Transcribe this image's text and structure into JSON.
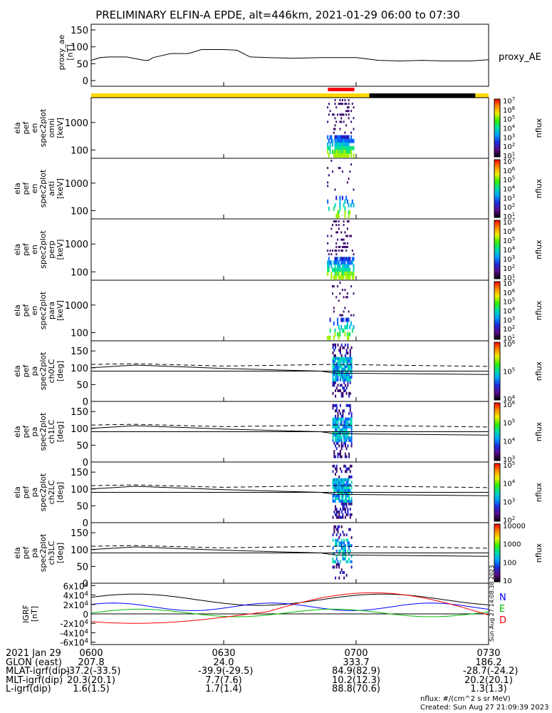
{
  "title": "PRELIMINARY ELFIN-A EPDE, alt=446km, 2021-01-29 06:00 to 07:30",
  "chart_data": {
    "type": "stacked time-series panels (line + spectrograms)",
    "time_range": [
      "06:00",
      "07:30"
    ],
    "x_ticks": [
      "0600",
      "0630",
      "0700",
      "0730"
    ],
    "panels": [
      {
        "id": "proxy_ae",
        "type": "line",
        "ylabel": [
          "proxy_ae",
          "[nT]"
        ],
        "side_label": "proxy_AE",
        "ylim": [
          0,
          150
        ],
        "yticks": [
          0,
          50,
          100,
          150
        ],
        "x_minutes": [
          0,
          2,
          4,
          8,
          12,
          13,
          14,
          18,
          20,
          22,
          25,
          30,
          33,
          36,
          40,
          46,
          52,
          56,
          60,
          62,
          65,
          70,
          75,
          80,
          86,
          90
        ],
        "values": [
          60,
          68,
          70,
          70,
          60,
          60,
          68,
          80,
          80,
          80,
          92,
          92,
          90,
          70,
          68,
          66,
          68,
          68,
          68,
          65,
          60,
          58,
          60,
          58,
          58,
          62
        ]
      },
      {
        "id": "ela_pef_en_spec2plot_omni",
        "type": "spectrogram",
        "ylabel": [
          "ela",
          "pef",
          "en",
          "spec2plot",
          "omni",
          "[keV]"
        ],
        "y_scale": "log",
        "yticks": [
          100,
          1000
        ],
        "colorbar": {
          "label": "nflux",
          "ticks": [
            "10^1",
            "10^2",
            "10^3",
            "10^4",
            "10^5",
            "10^6",
            "10^7"
          ]
        }
      },
      {
        "id": "ela_pef_en_spec2plot_anti",
        "type": "spectrogram",
        "ylabel": [
          "ela",
          "pef",
          "en",
          "spec2plot",
          "anti",
          "[keV]"
        ],
        "y_scale": "log",
        "yticks": [
          100,
          1000
        ],
        "colorbar": {
          "label": "nflux",
          "ticks": [
            "10^1",
            "10^2",
            "10^3",
            "10^4",
            "10^5",
            "10^6",
            "10^7"
          ]
        }
      },
      {
        "id": "ela_pef_en_spec2plot_perp",
        "type": "spectrogram",
        "ylabel": [
          "ela",
          "pef",
          "en",
          "spec2plot",
          "perp",
          "[keV]"
        ],
        "y_scale": "log",
        "yticks": [
          100,
          1000
        ],
        "colorbar": {
          "label": "nflux",
          "ticks": [
            "10^1",
            "10^2",
            "10^3",
            "10^4",
            "10^5",
            "10^6",
            "10^7"
          ]
        }
      },
      {
        "id": "ela_pef_en_spec2plot_para",
        "type": "spectrogram",
        "ylabel": [
          "ela",
          "pef",
          "en",
          "spec2plot",
          "para",
          "[keV]"
        ],
        "y_scale": "log",
        "yticks": [
          100,
          1000
        ],
        "colorbar": {
          "label": "nflux",
          "ticks": [
            "10^1",
            "10^2",
            "10^3",
            "10^4",
            "10^5",
            "10^6",
            "10^7"
          ]
        }
      },
      {
        "id": "ela_pef_pa_spec2plot_ch0LC",
        "type": "spectrogram",
        "ylabel": [
          "ela",
          "pef",
          "pa",
          "spec2plot",
          "ch0LC",
          "[deg]"
        ],
        "ylim": [
          0,
          180
        ],
        "yticks": [
          0,
          50,
          100,
          150
        ],
        "colorbar": {
          "label": "nflux",
          "ticks": [
            "10^4",
            "10^5",
            "10^6"
          ]
        }
      },
      {
        "id": "ela_pef_pa_spec2plot_ch1LC",
        "type": "spectrogram",
        "ylabel": [
          "ela",
          "pef",
          "pa",
          "spec2plot",
          "ch1LC",
          "[deg]"
        ],
        "ylim": [
          0,
          180
        ],
        "yticks": [
          0,
          50,
          100,
          150
        ],
        "colorbar": {
          "label": "nflux",
          "ticks": [
            "10^3",
            "10^4",
            "10^5",
            "10^6"
          ]
        }
      },
      {
        "id": "ela_pef_pa_spec2plot_ch2LC",
        "type": "spectrogram",
        "ylabel": [
          "ela",
          "pef",
          "pa",
          "spec2plot",
          "ch2LC",
          "[deg]"
        ],
        "ylim": [
          0,
          180
        ],
        "yticks": [
          0,
          50,
          100,
          150
        ],
        "colorbar": {
          "label": "nflux",
          "ticks": [
            "10^2",
            "10^3",
            "10^4",
            "10^5"
          ]
        }
      },
      {
        "id": "ela_pef_pa_spec2plot_ch3LC",
        "type": "spectrogram",
        "ylabel": [
          "ela",
          "pef",
          "pa",
          "spec2plot",
          "ch3LC",
          "[deg]"
        ],
        "ylim": [
          0,
          180
        ],
        "yticks": [
          0,
          50,
          100,
          150
        ],
        "colorbar": {
          "label": "nflux",
          "ticks": [
            "10",
            "100",
            "1000",
            "10000"
          ]
        }
      },
      {
        "id": "igrf",
        "type": "line",
        "ylabel": [
          "IGRF",
          "[nT]"
        ],
        "ylim": [
          -65000,
          65000
        ],
        "yticks": [
          "-6x10^4",
          "-4x10^4",
          "-2x10^4",
          "0",
          "2x10^4",
          "4x10^4",
          "6x10^4"
        ],
        "legend": [
          {
            "name": "N",
            "color": "#0000ff"
          },
          {
            "name": "E",
            "color": "#00c000"
          },
          {
            "name": "D",
            "color": "#ff0000"
          }
        ],
        "side_stamp": "Sun Aug 27 14:08:38 2023"
      }
    ],
    "footer_rows": [
      {
        "label": "2021 Jan 29",
        "values": [
          "0600",
          "0630",
          "0700",
          "0730"
        ]
      },
      {
        "label": "GLON (east)",
        "values": [
          "207.8",
          "24.0",
          "333.7",
          "186.2"
        ]
      },
      {
        "label": "MLAT-igrf(dip)",
        "values": [
          "-37.2(-33.5)",
          "-39.9(-29.5)",
          "84.9(82.9)",
          "-28.7(-24.2)"
        ]
      },
      {
        "label": "MLT-igrf(dip)",
        "values": [
          "20.3(20.1)",
          "7.7(7.6)",
          "10.2(12.3)",
          "20.2(20.1)"
        ]
      },
      {
        "label": "L-igrf(dip)",
        "values": [
          "1.6(1.5)",
          "1.7(1.4)",
          "88.8(70.6)",
          "1.3(1.3)"
        ]
      }
    ],
    "units_note": "nflux: #/(cm^2 s sr MeV)",
    "created": "Created: Sun Aug 27 21:09:39 2023"
  }
}
